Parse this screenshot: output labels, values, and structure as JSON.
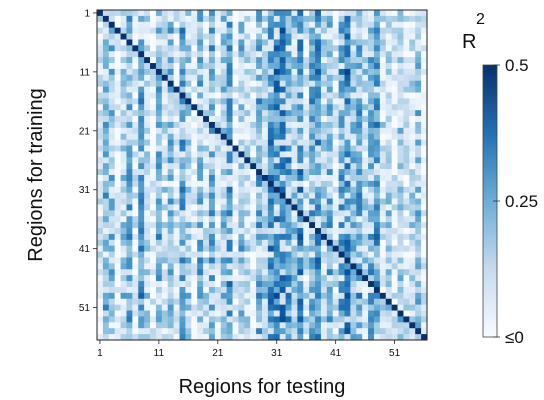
{
  "chart_data": {
    "type": "heatmap",
    "title": "",
    "xlabel": "Regions for testing",
    "ylabel": "Regions for training",
    "x_ticks": [
      "1",
      "11",
      "21",
      "31",
      "41",
      "51"
    ],
    "y_ticks": [
      "1",
      "11",
      "21",
      "31",
      "41",
      "51"
    ],
    "n_rows": 56,
    "n_cols": 56,
    "colorbar": {
      "label_base": "R",
      "label_superscript": "2",
      "tick_labels": [
        "0.5",
        "0.25",
        "≤0"
      ],
      "tick_values": [
        0.5,
        0.25,
        0
      ],
      "range": [
        0,
        0.5
      ],
      "color_low": "#f7fbff",
      "color_high": "#08306b"
    },
    "diagonal_value": 0.5,
    "column_profile_training_mean": [
      0.06,
      0.18,
      0.15,
      0.03,
      0.12,
      0.2,
      0.05,
      0.22,
      0.1,
      0.04,
      0.19,
      0.08,
      0.16,
      0.05,
      0.21,
      0.12,
      0.03,
      0.18,
      0.09,
      0.2,
      0.06,
      0.14,
      0.22,
      0.04,
      0.17,
      0.1,
      0.05,
      0.19,
      0.12,
      0.24,
      0.26,
      0.28,
      0.22,
      0.15,
      0.25,
      0.08,
      0.2,
      0.24,
      0.12,
      0.18,
      0.06,
      0.21,
      0.27,
      0.15,
      0.2,
      0.1,
      0.18,
      0.22,
      0.08,
      0.12,
      0.05,
      0.14,
      0.06,
      0.1,
      0.16,
      0.04
    ],
    "row_profile_training_mean": [
      0.1,
      0.14,
      0.08,
      0.16,
      0.06,
      0.12,
      0.15,
      0.07,
      0.13,
      0.11,
      0.17,
      0.09,
      0.12,
      0.14,
      0.06,
      0.15,
      0.1,
      0.13,
      0.08,
      0.16,
      0.11,
      0.07,
      0.14,
      0.12,
      0.1,
      0.15,
      0.09,
      0.13,
      0.16,
      0.11,
      0.18,
      0.14,
      0.17,
      0.12,
      0.15,
      0.1,
      0.16,
      0.13,
      0.18,
      0.12,
      0.14,
      0.09,
      0.16,
      0.13,
      0.17,
      0.12,
      0.15,
      0.11,
      0.18,
      0.14,
      0.16,
      0.12,
      0.15,
      0.1,
      0.13,
      0.11
    ],
    "cells_sparse_note_free_values": [],
    "grid": false
  },
  "colors": {
    "diagonal": "#08306b",
    "border": "#222222"
  }
}
